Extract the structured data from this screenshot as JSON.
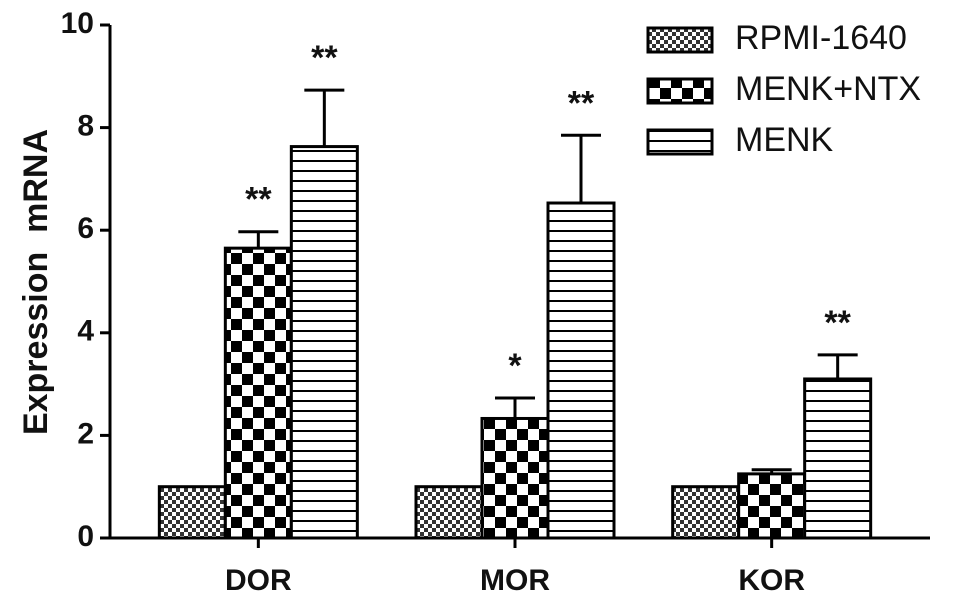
{
  "chart_data": {
    "type": "bar",
    "y_label": "Expression  mRNA",
    "categories": [
      "DOR",
      "MOR",
      "KOR"
    ],
    "series": [
      {
        "name": "RPMI-1640",
        "color": "#000000",
        "pattern": "fine-check",
        "values": [
          1,
          1,
          1
        ]
      },
      {
        "name": "MENK+NTX",
        "color": "#000000",
        "pattern": "check",
        "values": [
          5.65,
          2.33,
          1.25
        ],
        "errors": [
          0.32,
          0.4,
          0.08
        ],
        "annotations": [
          "**",
          "*",
          null
        ]
      },
      {
        "name": "MENK",
        "color": "#000000",
        "pattern": "hlines",
        "values": [
          7.63,
          6.53,
          3.1
        ],
        "errors": [
          1.1,
          1.32,
          0.47
        ],
        "annotations": [
          "**",
          "**",
          "**"
        ]
      }
    ],
    "ylim": [
      0,
      10
    ],
    "yticks": [
      0,
      2,
      4,
      6,
      8,
      10
    ],
    "grid": false,
    "legend": "top-right"
  }
}
